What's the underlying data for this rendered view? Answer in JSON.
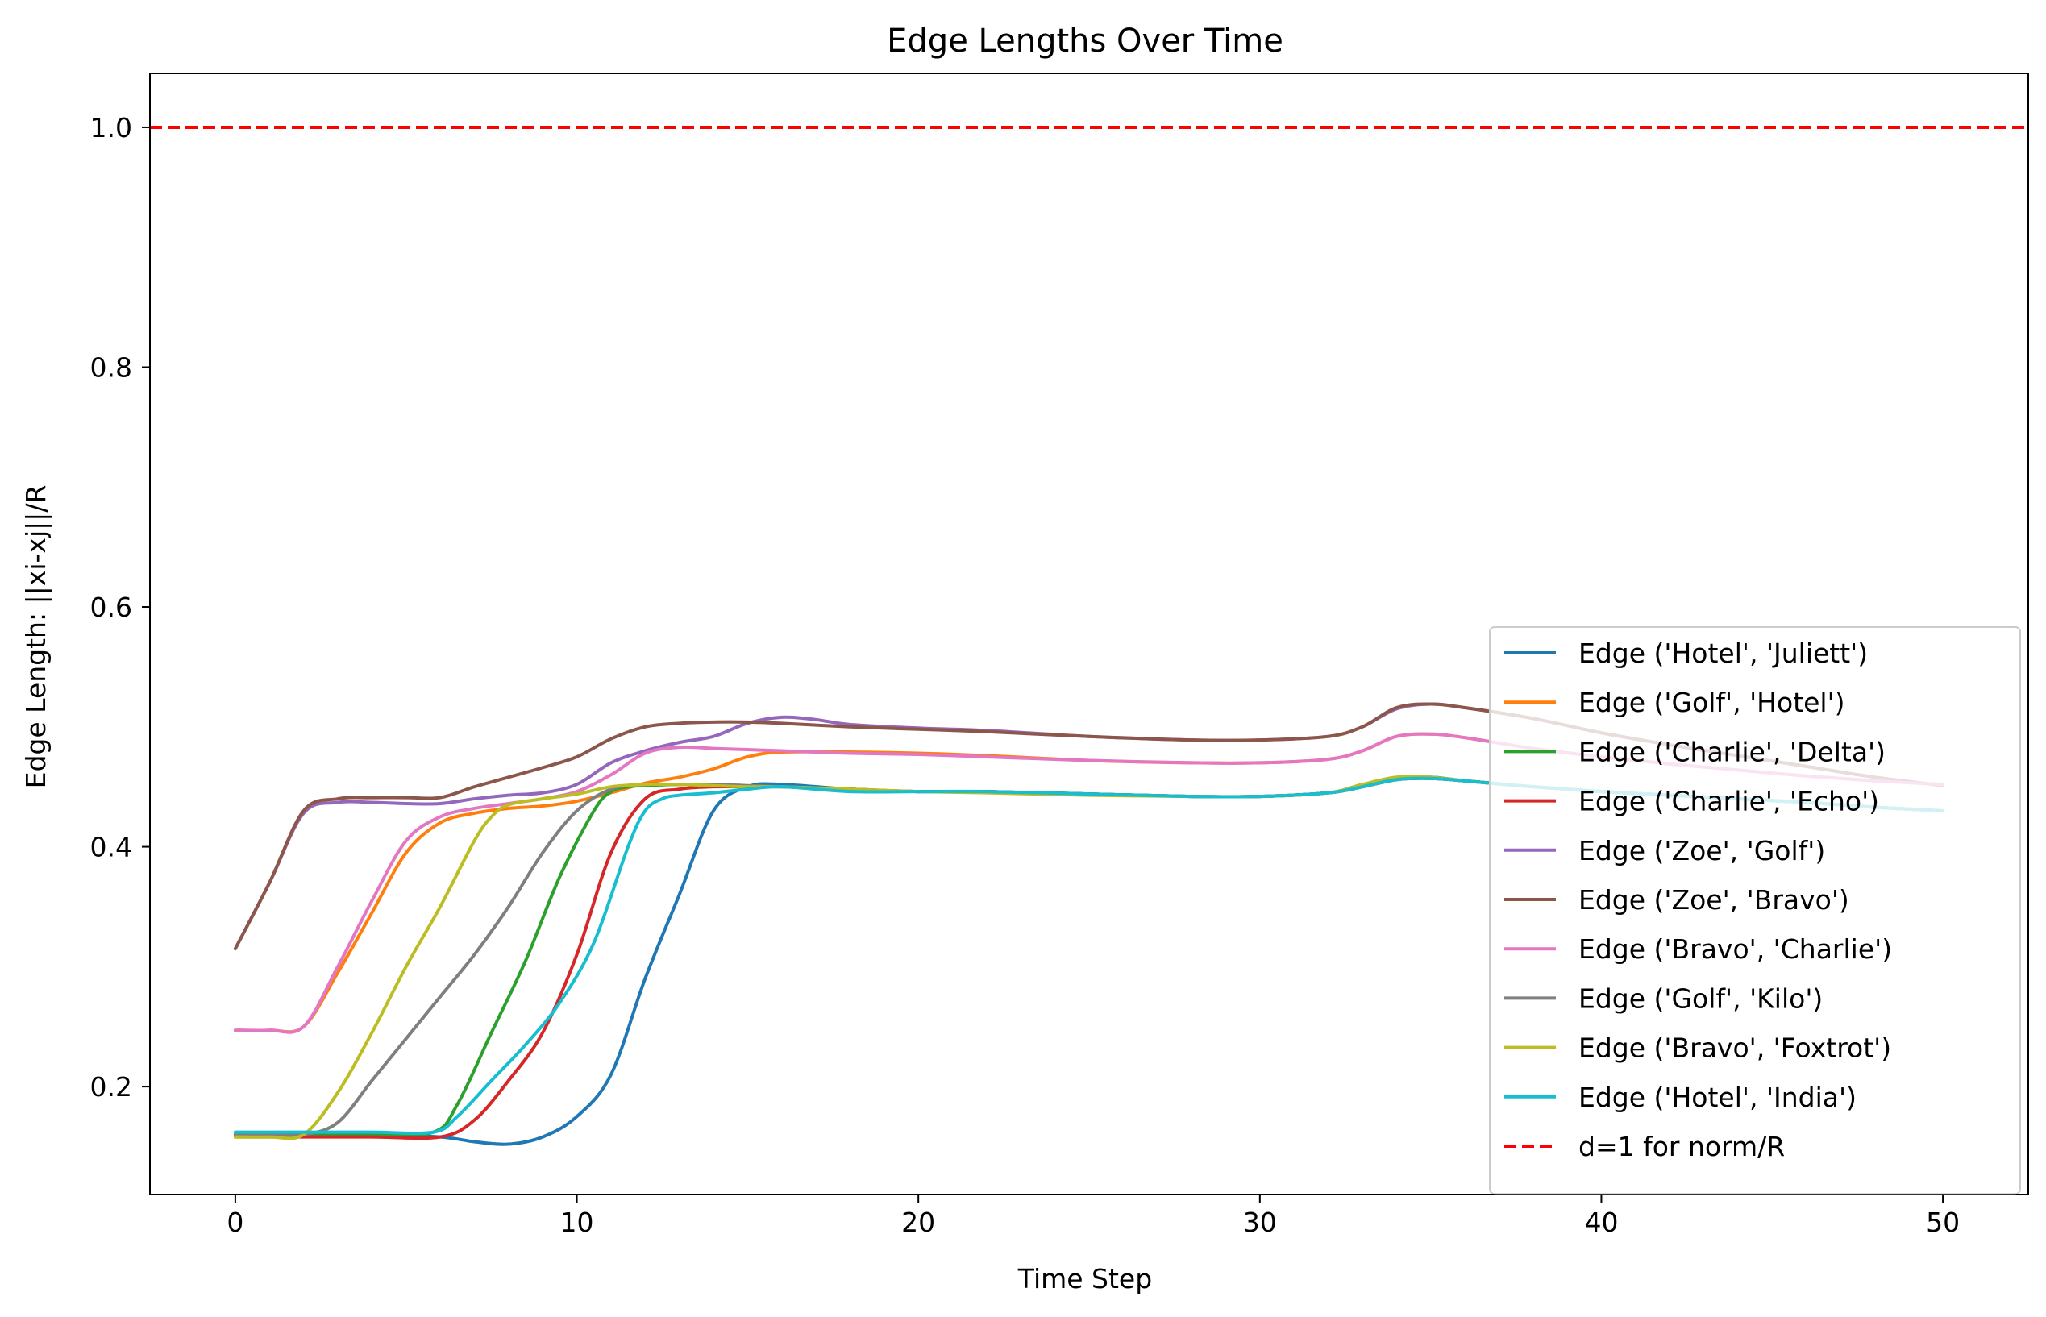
{
  "chart_data": {
    "type": "line",
    "title": "Edge Lengths Over Time",
    "xlabel": "Time Step",
    "ylabel": "Edge Length: ||xi-xj||/R",
    "xlim": [
      -2.5,
      52.5
    ],
    "ylim": [
      0.11,
      1.045
    ],
    "xticks": [
      0,
      10,
      20,
      30,
      40,
      50
    ],
    "xtick_labels": [
      "0",
      "10",
      "20",
      "30",
      "40",
      "50"
    ],
    "yticks": [
      0.2,
      0.4,
      0.6,
      0.8,
      1.0
    ],
    "ytick_labels": [
      "0.2",
      "0.4",
      "0.6",
      "0.8",
      "1.0"
    ],
    "grid": false,
    "legend_position": "lower right",
    "series": [
      {
        "name": "Edge ('Hotel', 'Juliett')",
        "color": "#1f77b4",
        "x": [
          0,
          2,
          4,
          6,
          7,
          8,
          9,
          10,
          11,
          12,
          13,
          14,
          15,
          16,
          18,
          20,
          22,
          25,
          28,
          30,
          32,
          33,
          34,
          35,
          36,
          38,
          40,
          42,
          44,
          46,
          48,
          50
        ],
        "y": [
          0.16,
          0.16,
          0.16,
          0.158,
          0.154,
          0.152,
          0.158,
          0.175,
          0.21,
          0.29,
          0.36,
          0.43,
          0.45,
          0.452,
          0.448,
          0.446,
          0.446,
          0.444,
          0.442,
          0.442,
          0.445,
          0.45,
          0.456,
          0.458,
          0.455,
          0.45,
          0.446,
          0.443,
          0.44,
          0.437,
          0.433,
          0.43
        ]
      },
      {
        "name": "Edge ('Golf', 'Hotel')",
        "color": "#ff7f0e",
        "x": [
          0,
          1,
          2,
          3,
          4,
          5,
          6,
          7,
          8,
          9,
          10,
          11,
          12,
          13,
          14,
          15,
          16,
          18,
          20,
          22,
          25,
          28,
          30,
          32,
          33,
          34,
          35,
          36,
          38,
          40,
          42,
          44,
          46,
          48,
          50
        ],
        "y": [
          0.247,
          0.247,
          0.25,
          0.295,
          0.345,
          0.395,
          0.42,
          0.428,
          0.432,
          0.434,
          0.438,
          0.445,
          0.453,
          0.458,
          0.465,
          0.475,
          0.479,
          0.479,
          0.478,
          0.476,
          0.472,
          0.47,
          0.47,
          0.473,
          0.48,
          0.492,
          0.494,
          0.491,
          0.482,
          0.475,
          0.469,
          0.464,
          0.459,
          0.455,
          0.452
        ]
      },
      {
        "name": "Edge ('Charlie', 'Delta')",
        "color": "#2ca02c",
        "x": [
          0,
          2,
          4,
          5.8,
          6.5,
          7.5,
          8.5,
          9.5,
          10.5,
          11,
          11.5,
          12,
          13,
          14,
          15,
          16,
          18,
          20,
          22,
          25,
          28,
          30,
          32,
          33,
          34,
          35,
          36,
          38,
          40,
          42,
          44,
          46,
          48,
          50
        ],
        "y": [
          0.16,
          0.16,
          0.16,
          0.162,
          0.185,
          0.245,
          0.305,
          0.375,
          0.43,
          0.446,
          0.45,
          0.451,
          0.452,
          0.451,
          0.45,
          0.45,
          0.448,
          0.446,
          0.446,
          0.444,
          0.442,
          0.442,
          0.445,
          0.45,
          0.456,
          0.457,
          0.455,
          0.45,
          0.446,
          0.443,
          0.44,
          0.437,
          0.433,
          0.43
        ]
      },
      {
        "name": "Edge ('Charlie', 'Echo')",
        "color": "#d62728",
        "x": [
          0,
          2,
          4,
          6,
          7,
          8,
          9,
          10,
          11,
          12,
          13,
          14,
          15,
          16,
          18,
          20,
          22,
          25,
          28,
          30,
          32,
          33,
          34,
          35,
          36,
          38,
          40,
          42,
          44,
          46,
          48,
          50
        ],
        "y": [
          0.158,
          0.158,
          0.158,
          0.158,
          0.172,
          0.205,
          0.245,
          0.31,
          0.395,
          0.44,
          0.448,
          0.45,
          0.45,
          0.45,
          0.448,
          0.446,
          0.446,
          0.444,
          0.442,
          0.442,
          0.445,
          0.45,
          0.456,
          0.457,
          0.455,
          0.45,
          0.446,
          0.443,
          0.44,
          0.437,
          0.433,
          0.43
        ]
      },
      {
        "name": "Edge ('Zoe', 'Golf')",
        "color": "#9467bd",
        "x": [
          0,
          1,
          2,
          3,
          4,
          5,
          6,
          7,
          8,
          9,
          10,
          11,
          12,
          13,
          14,
          15,
          16,
          17,
          18,
          20,
          22,
          25,
          28,
          30,
          32,
          33,
          34,
          35,
          36,
          38,
          40,
          42,
          44,
          46,
          48,
          50
        ],
        "y": [
          0.315,
          0.37,
          0.428,
          0.437,
          0.437,
          0.436,
          0.436,
          0.44,
          0.443,
          0.445,
          0.452,
          0.47,
          0.48,
          0.487,
          0.492,
          0.503,
          0.508,
          0.506,
          0.502,
          0.499,
          0.497,
          0.492,
          0.489,
          0.489,
          0.492,
          0.5,
          0.515,
          0.519,
          0.516,
          0.507,
          0.495,
          0.485,
          0.476,
          0.467,
          0.458,
          0.451
        ]
      },
      {
        "name": "Edge ('Zoe', 'Bravo')",
        "color": "#8c564b",
        "x": [
          0,
          1,
          2,
          3,
          4,
          5,
          6,
          7,
          8,
          9,
          10,
          11,
          12,
          13,
          14,
          15,
          16,
          18,
          20,
          22,
          25,
          28,
          30,
          32,
          33,
          34,
          35,
          36,
          38,
          40,
          42,
          44,
          46,
          48,
          50
        ],
        "y": [
          0.315,
          0.37,
          0.43,
          0.44,
          0.441,
          0.441,
          0.441,
          0.45,
          0.458,
          0.466,
          0.475,
          0.49,
          0.5,
          0.503,
          0.504,
          0.504,
          0.503,
          0.5,
          0.498,
          0.496,
          0.492,
          0.489,
          0.489,
          0.492,
          0.5,
          0.516,
          0.519,
          0.516,
          0.507,
          0.495,
          0.485,
          0.476,
          0.467,
          0.458,
          0.451
        ]
      },
      {
        "name": "Edge ('Bravo', 'Charlie')",
        "color": "#e377c2",
        "x": [
          0,
          1,
          2,
          3,
          4,
          5,
          6,
          7,
          8,
          9,
          10,
          11,
          12,
          13,
          14,
          15,
          16,
          18,
          20,
          22,
          25,
          28,
          30,
          32,
          33,
          34,
          35,
          36,
          38,
          40,
          42,
          44,
          46,
          48,
          50
        ],
        "y": [
          0.247,
          0.247,
          0.25,
          0.3,
          0.355,
          0.405,
          0.425,
          0.432,
          0.436,
          0.44,
          0.446,
          0.46,
          0.478,
          0.483,
          0.482,
          0.481,
          0.48,
          0.478,
          0.477,
          0.475,
          0.472,
          0.47,
          0.47,
          0.473,
          0.48,
          0.492,
          0.494,
          0.491,
          0.482,
          0.475,
          0.469,
          0.464,
          0.459,
          0.455,
          0.452
        ]
      },
      {
        "name": "Edge ('Golf', 'Kilo')",
        "color": "#7f7f7f",
        "x": [
          0,
          1,
          2,
          3,
          4,
          5,
          6,
          7,
          8,
          9,
          10,
          11,
          12,
          13,
          14,
          15,
          16,
          18,
          20,
          22,
          25,
          28,
          30,
          32,
          33,
          34,
          35,
          36,
          38,
          40,
          42,
          44,
          46,
          48,
          50
        ],
        "y": [
          0.16,
          0.16,
          0.16,
          0.17,
          0.205,
          0.24,
          0.275,
          0.31,
          0.35,
          0.395,
          0.43,
          0.448,
          0.452,
          0.452,
          0.452,
          0.451,
          0.45,
          0.448,
          0.446,
          0.446,
          0.444,
          0.442,
          0.442,
          0.445,
          0.45,
          0.456,
          0.457,
          0.455,
          0.45,
          0.446,
          0.443,
          0.44,
          0.437,
          0.433,
          0.43
        ]
      },
      {
        "name": "Edge ('Bravo', 'Foxtrot')",
        "color": "#bcbd22",
        "x": [
          0,
          1,
          2,
          3,
          4,
          5,
          6,
          7,
          7.5,
          8,
          9,
          10,
          11,
          12,
          13,
          14,
          15,
          16,
          18,
          20,
          22,
          25,
          28,
          30,
          32,
          33,
          34,
          35,
          36,
          38,
          40,
          42,
          44,
          46,
          48,
          50
        ],
        "y": [
          0.158,
          0.158,
          0.16,
          0.195,
          0.245,
          0.3,
          0.35,
          0.405,
          0.425,
          0.435,
          0.44,
          0.444,
          0.45,
          0.452,
          0.452,
          0.451,
          0.45,
          0.45,
          0.448,
          0.446,
          0.445,
          0.443,
          0.442,
          0.442,
          0.445,
          0.452,
          0.458,
          0.458,
          0.455,
          0.45,
          0.446,
          0.443,
          0.44,
          0.437,
          0.433,
          0.43
        ]
      },
      {
        "name": "Edge ('Hotel', 'India')",
        "color": "#17becf",
        "x": [
          0,
          2,
          4,
          5.8,
          6.5,
          7.5,
          8.5,
          9.5,
          10.5,
          11.5,
          12,
          12.5,
          13,
          14,
          15,
          16,
          18,
          20,
          22,
          25,
          28,
          30,
          32,
          33,
          34,
          35,
          36,
          38,
          40,
          42,
          44,
          46,
          48,
          50
        ],
        "y": [
          0.162,
          0.162,
          0.162,
          0.162,
          0.175,
          0.205,
          0.235,
          0.27,
          0.32,
          0.4,
          0.43,
          0.44,
          0.443,
          0.445,
          0.448,
          0.45,
          0.446,
          0.446,
          0.446,
          0.444,
          0.442,
          0.442,
          0.445,
          0.45,
          0.456,
          0.457,
          0.455,
          0.45,
          0.446,
          0.443,
          0.44,
          0.437,
          0.433,
          0.43
        ]
      }
    ],
    "reference_lines": [
      {
        "name": "d=1 for norm/R",
        "y": 1.0,
        "color": "#ff0000",
        "style": "dashed"
      }
    ]
  }
}
